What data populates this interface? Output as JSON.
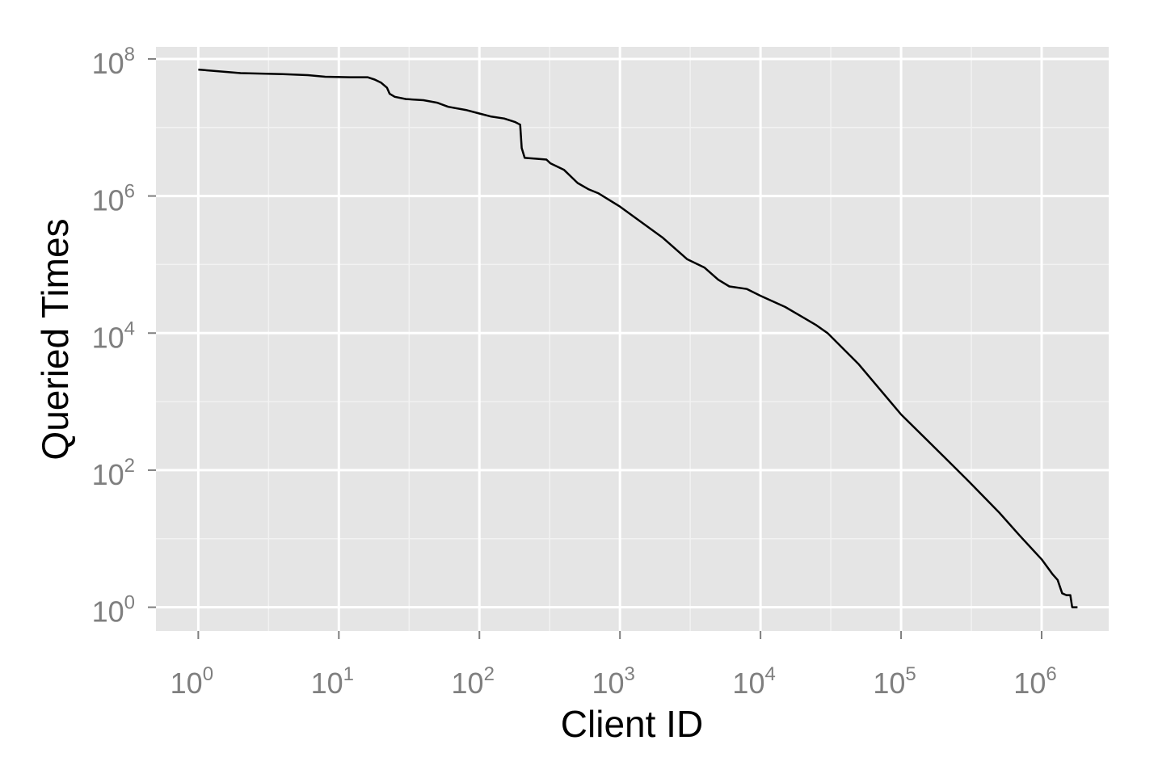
{
  "chart_data": {
    "type": "line",
    "title": "",
    "xlabel": "Client ID",
    "ylabel": "Queried Times",
    "x_scale": "log10",
    "y_scale": "log10",
    "xlim": [
      0.5,
      3000000
    ],
    "ylim": [
      0.45,
      150000000
    ],
    "grid": true,
    "x_ticks": [
      {
        "value": 1,
        "base": "10",
        "exp": "0"
      },
      {
        "value": 10,
        "base": "10",
        "exp": "1"
      },
      {
        "value": 100,
        "base": "10",
        "exp": "2"
      },
      {
        "value": 1000,
        "base": "10",
        "exp": "3"
      },
      {
        "value": 10000,
        "base": "10",
        "exp": "4"
      },
      {
        "value": 100000,
        "base": "10",
        "exp": "5"
      },
      {
        "value": 1000000,
        "base": "10",
        "exp": "6"
      }
    ],
    "y_ticks": [
      {
        "value": 1,
        "base": "10",
        "exp": "0"
      },
      {
        "value": 100,
        "base": "10",
        "exp": "2"
      },
      {
        "value": 10000,
        "base": "10",
        "exp": "4"
      },
      {
        "value": 1000000,
        "base": "10",
        "exp": "6"
      },
      {
        "value": 100000000,
        "base": "10",
        "exp": "8"
      }
    ],
    "series": [
      {
        "color": "#000000",
        "x": [
          1,
          2,
          4,
          6,
          8,
          12,
          16,
          18,
          20,
          22,
          23,
          25,
          30,
          40,
          50,
          60,
          80,
          100,
          120,
          150,
          180,
          195,
          200,
          210,
          250,
          300,
          320,
          400,
          500,
          600,
          700,
          1000,
          2000,
          3000,
          4000,
          5000,
          6000,
          8000,
          10000,
          15000,
          20000,
          25000,
          30000,
          50000,
          100000,
          200000,
          300000,
          500000,
          700000,
          1000000,
          1200000,
          1300000,
          1400000,
          1500000,
          1600000,
          1650000,
          1700000,
          1800000
        ],
        "y": [
          70000000,
          62000000,
          60000000,
          58000000,
          55000000,
          54000000,
          54000000,
          50000000,
          45000000,
          38000000,
          31000000,
          28000000,
          26000000,
          25000000,
          23000000,
          20000000,
          18000000,
          16000000,
          14500000,
          13500000,
          12000000,
          11000000,
          5000000,
          3600000,
          3500000,
          3400000,
          3000000,
          2400000,
          1550000,
          1250000,
          1100000,
          700000,
          250000,
          120000,
          90000,
          60000,
          48000,
          44000,
          35000,
          24000,
          17000,
          13000,
          10000,
          3500,
          650,
          160,
          70,
          24,
          11,
          5,
          3,
          2.5,
          1.6,
          1.5,
          1.5,
          1,
          1,
          1
        ]
      }
    ]
  }
}
